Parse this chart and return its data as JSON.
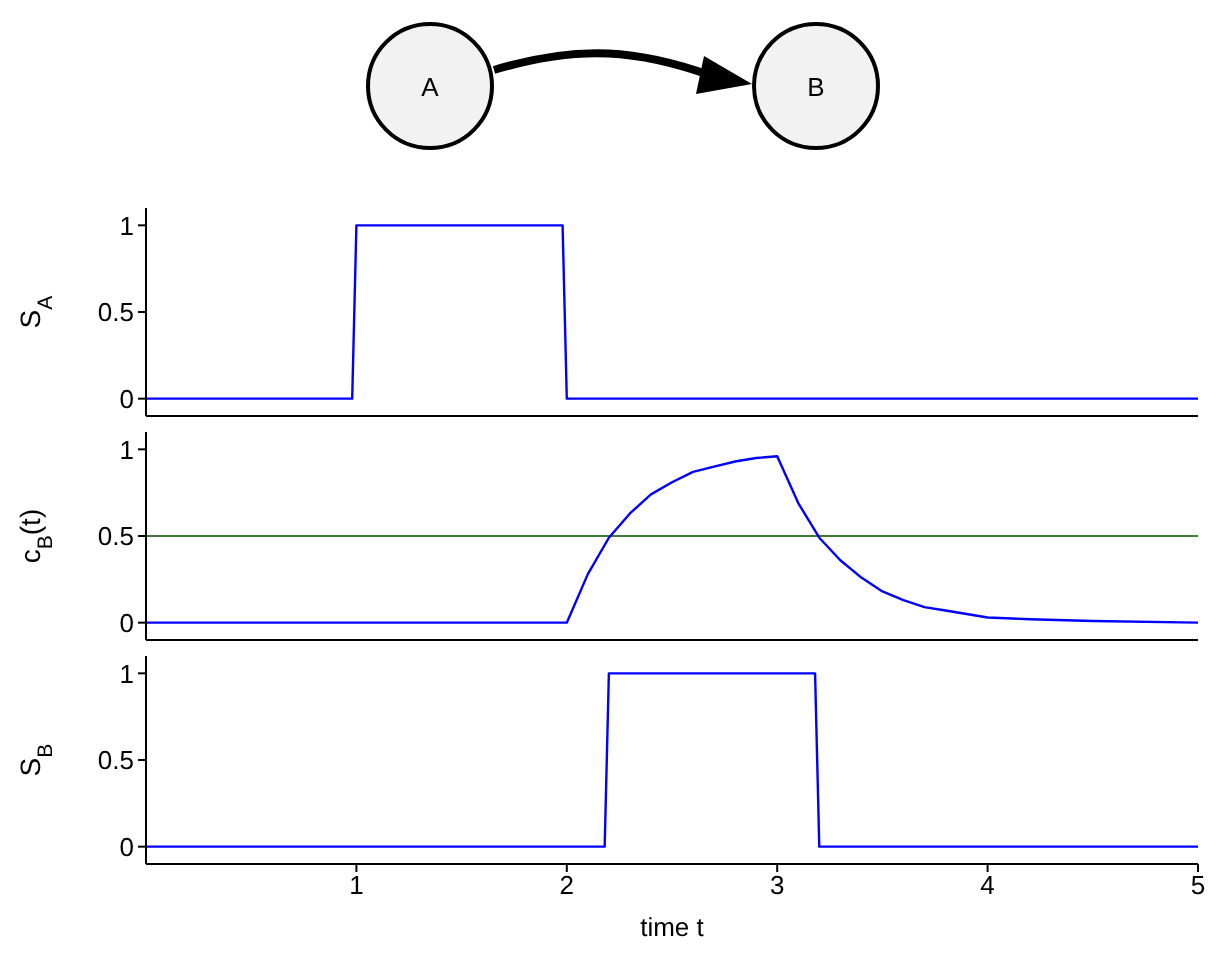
{
  "chart_data": [
    {
      "type": "other",
      "annotations": [
        "A",
        "B"
      ]
    },
    {
      "type": "line",
      "ylabel": "S$_{A}$",
      "xlim": [
        0,
        5
      ],
      "xticks": [
        1,
        2,
        3,
        4,
        5
      ],
      "ylim": [
        -0.1,
        1.1
      ],
      "yticks": [
        0,
        0.5,
        1
      ],
      "tick_labels": "y",
      "series": [
        {
          "color": "#0000ff",
          "x": [
            0,
            0.98,
            1.0,
            1.98,
            2.0,
            5
          ],
          "values": [
            0,
            0,
            1,
            1,
            0,
            0
          ]
        }
      ]
    },
    {
      "type": "line",
      "ylabel": "c$_{B}$(t)",
      "xlim": [
        0,
        5
      ],
      "xticks": [
        1,
        2,
        3,
        4,
        5
      ],
      "ylim": [
        -0.1,
        1.1
      ],
      "yticks": [
        0,
        0.5,
        1
      ],
      "tick_labels": "y",
      "ref_lines": [
        {
          "axis": "y",
          "value": 0.5,
          "color": "#3d7a33"
        }
      ],
      "series": [
        {
          "color": "#0000ff",
          "x": [
            0,
            2.0,
            2.1,
            2.2,
            2.3,
            2.4,
            2.5,
            2.6,
            2.7,
            2.8,
            2.9,
            3.0,
            3.1,
            3.2,
            3.3,
            3.4,
            3.5,
            3.6,
            3.7,
            3.8,
            3.9,
            4.0,
            4.2,
            4.5,
            5
          ],
          "values": [
            0,
            0,
            0.28,
            0.49,
            0.63,
            0.74,
            0.81,
            0.87,
            0.9,
            0.93,
            0.95,
            0.96,
            0.69,
            0.49,
            0.36,
            0.26,
            0.18,
            0.13,
            0.09,
            0.07,
            0.05,
            0.03,
            0.02,
            0.01,
            0
          ]
        }
      ]
    },
    {
      "type": "line",
      "ylabel": "S$_{B}$",
      "xlabel": "time t",
      "xlim": [
        0,
        5
      ],
      "xticks": [
        1,
        2,
        3,
        4,
        5
      ],
      "ylim": [
        -0.1,
        1.1
      ],
      "yticks": [
        0,
        0.5,
        1
      ],
      "series": [
        {
          "color": "#0000ff",
          "x": [
            0,
            2.18,
            2.2,
            3.18,
            3.2,
            5
          ],
          "values": [
            0,
            0,
            1,
            1,
            0,
            0
          ]
        }
      ]
    }
  ]
}
